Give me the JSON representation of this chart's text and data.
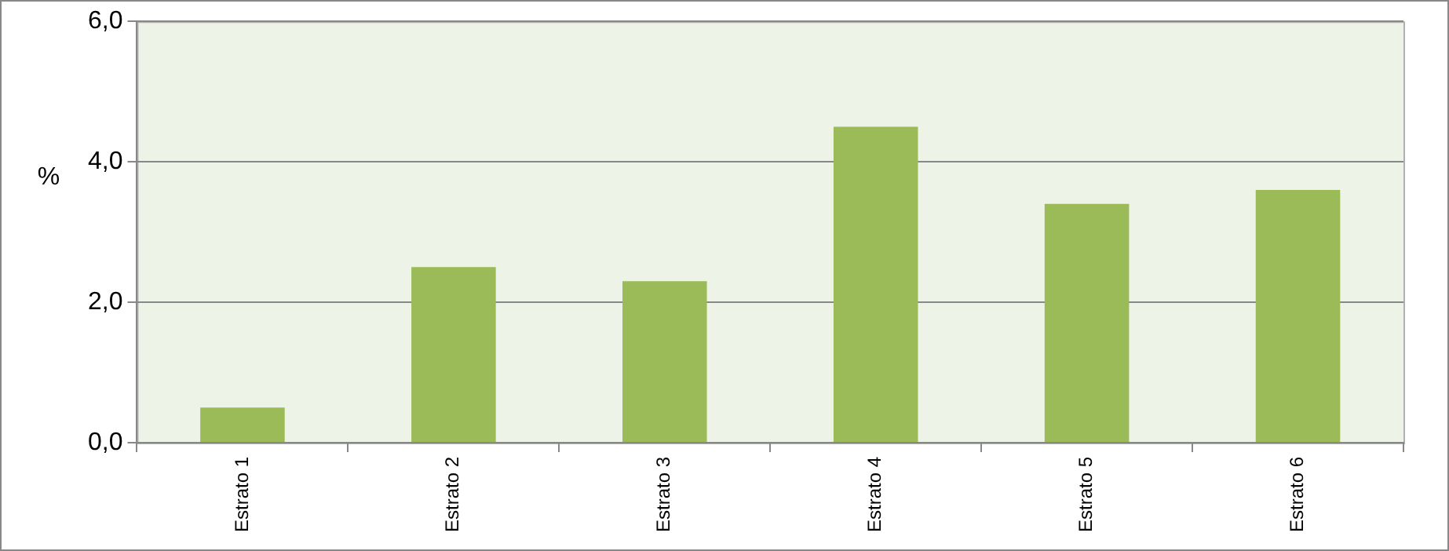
{
  "chart_data": {
    "type": "bar",
    "ylabel": "%",
    "categories": [
      "Estrato 1",
      "Estrato 2",
      "Estrato 3",
      "Estrato 4",
      "Estrato 5",
      "Estrato 6"
    ],
    "values": [
      0.5,
      2.5,
      2.3,
      4.5,
      3.4,
      3.6
    ],
    "color": "#9bbb59",
    "ylim": [
      0,
      6
    ],
    "yticks": [
      {
        "value": 0,
        "label": "0,0"
      },
      {
        "value": 2,
        "label": "2,0"
      },
      {
        "value": 4,
        "label": "4,0"
      },
      {
        "value": 6,
        "label": "6,0"
      }
    ],
    "grid": "y",
    "legend": false
  }
}
